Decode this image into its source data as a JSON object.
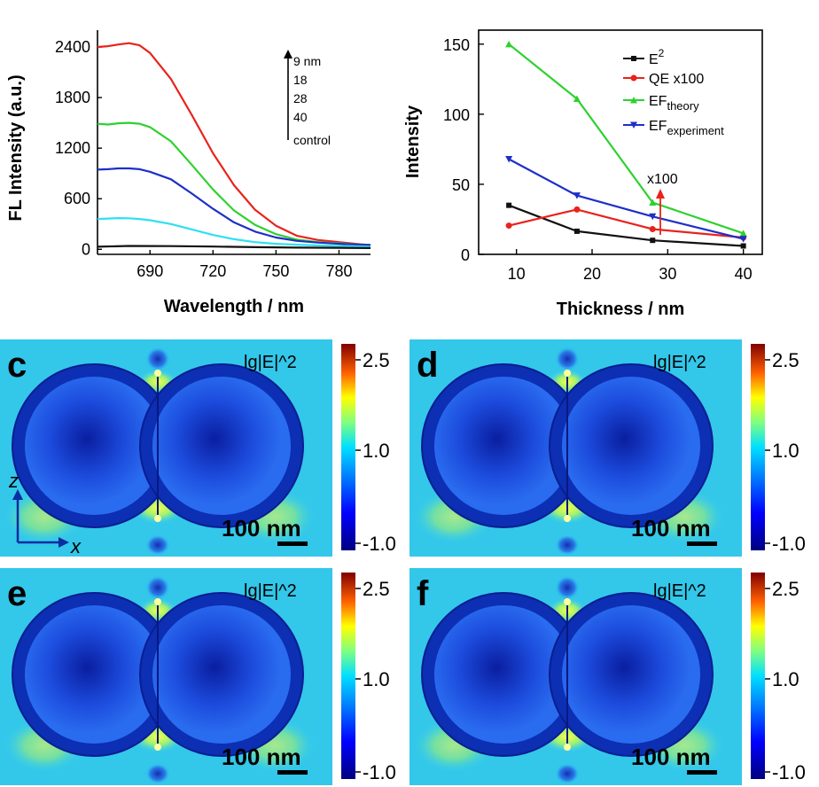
{
  "chart_data": [
    {
      "type": "line",
      "xlabel": "Wavelength / nm",
      "ylabel": "FL Intensity (a.u.)",
      "xlim": [
        665,
        795
      ],
      "ylim": [
        -60,
        2600
      ],
      "xticks": [
        690,
        720,
        750,
        780
      ],
      "yticks": [
        0,
        600,
        1200,
        1800,
        2400
      ],
      "legend": [
        "9 nm",
        "18",
        "28",
        "40",
        "control"
      ],
      "series": [
        {
          "name": "9 nm",
          "color": "#e8231c",
          "x": [
            665,
            670,
            675,
            680,
            685,
            690,
            700,
            710,
            720,
            730,
            740,
            750,
            760,
            770,
            780,
            790,
            795
          ],
          "y": [
            2400,
            2410,
            2430,
            2445,
            2420,
            2330,
            2020,
            1590,
            1140,
            760,
            470,
            280,
            160,
            110,
            85,
            60,
            50
          ]
        },
        {
          "name": "18",
          "color": "#2ed12e",
          "x": [
            665,
            670,
            675,
            680,
            685,
            690,
            700,
            710,
            720,
            730,
            740,
            750,
            760,
            770,
            780,
            790,
            795
          ],
          "y": [
            1490,
            1480,
            1495,
            1500,
            1490,
            1450,
            1280,
            1000,
            710,
            460,
            290,
            180,
            115,
            85,
            70,
            55,
            50
          ]
        },
        {
          "name": "28",
          "color": "#1e2fc8",
          "x": [
            665,
            670,
            675,
            680,
            685,
            690,
            700,
            710,
            720,
            730,
            740,
            750,
            760,
            770,
            780,
            790,
            795
          ],
          "y": [
            945,
            950,
            960,
            960,
            950,
            920,
            830,
            660,
            480,
            320,
            210,
            140,
            100,
            80,
            65,
            55,
            50
          ]
        },
        {
          "name": "40",
          "color": "#2ee0f0",
          "x": [
            665,
            670,
            675,
            680,
            685,
            690,
            700,
            710,
            720,
            730,
            740,
            750,
            760,
            770,
            780,
            790,
            795
          ],
          "y": [
            360,
            365,
            370,
            368,
            360,
            345,
            300,
            235,
            170,
            120,
            85,
            65,
            55,
            45,
            40,
            35,
            30
          ]
        },
        {
          "name": "control",
          "color": "#111111",
          "x": [
            665,
            680,
            700,
            720,
            740,
            760,
            780,
            795
          ],
          "y": [
            30,
            40,
            38,
            32,
            25,
            20,
            18,
            15
          ]
        }
      ]
    },
    {
      "type": "line",
      "xlabel": "Thickness / nm",
      "ylabel": "Intensity",
      "xlim": [
        5,
        42.5
      ],
      "ylim": [
        0,
        160
      ],
      "xticks": [
        10,
        20,
        30,
        40
      ],
      "yticks": [
        0,
        50,
        100,
        150
      ],
      "annotation": "x100",
      "series": [
        {
          "name": "E2",
          "color": "#111111",
          "marker": "square",
          "x": [
            9,
            18,
            28,
            40
          ],
          "y": [
            35,
            16.5,
            10,
            6
          ]
        },
        {
          "name": "QE x100",
          "color": "#e8231c",
          "marker": "circle",
          "x": [
            9,
            18,
            28,
            40
          ],
          "y": [
            20.5,
            32,
            18,
            12
          ]
        },
        {
          "name": "EFtheory",
          "color": "#2ed12e",
          "marker": "triangle-up",
          "x": [
            9,
            18,
            28,
            40
          ],
          "y": [
            150,
            111,
            37,
            15
          ]
        },
        {
          "name": "EFexperiment",
          "color": "#1e2fc8",
          "marker": "triangle-down",
          "x": [
            9,
            18,
            28,
            40
          ],
          "y": [
            68,
            42,
            27,
            11
          ]
        }
      ]
    }
  ],
  "legend_b": {
    "e2_base": "E",
    "e2_sup": "2",
    "qe": "QE x100",
    "ef": "EF",
    "theory_sub": "theory",
    "experiment_sub": "experiment"
  },
  "panels": [
    {
      "letter": "c",
      "map_label": "lg|E|^2",
      "scale": "100 nm",
      "colorbar_ticks": [
        "2.5",
        "1.0",
        "-1.0"
      ]
    },
    {
      "letter": "d",
      "map_label": "lg|E|^2",
      "scale": "100 nm",
      "colorbar_ticks": [
        "2.5",
        "1.0",
        "-1.0"
      ]
    },
    {
      "letter": "e",
      "map_label": "lg|E|^2",
      "scale": "100 nm",
      "colorbar_ticks": [
        "2.5",
        "1.0",
        "-1.0"
      ]
    },
    {
      "letter": "f",
      "map_label": "lg|E|^2",
      "scale": "100 nm",
      "colorbar_ticks": [
        "2.5",
        "1.0",
        "-1.0"
      ]
    }
  ],
  "axes_indicator": {
    "z": "z",
    "x": "x"
  }
}
